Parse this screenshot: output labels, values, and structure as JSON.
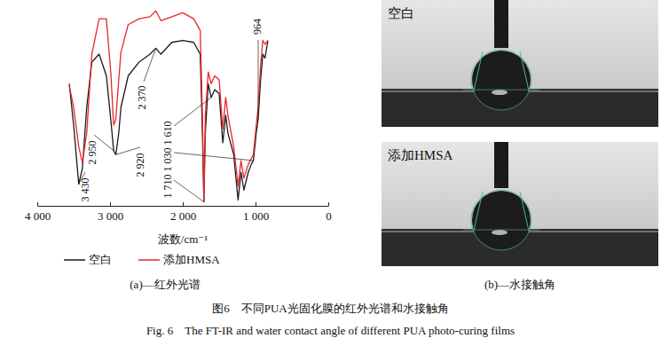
{
  "chart_data": {
    "type": "line",
    "xlabel": "波数/cm⁻¹",
    "caption": "(a)—红外光谱",
    "x": [
      3560,
      3500,
      3430,
      3380,
      3320,
      3250,
      3150,
      3050,
      2990,
      2950,
      2920,
      2880,
      2850,
      2750,
      2600,
      2450,
      2370,
      2300,
      2150,
      2000,
      1850,
      1760,
      1730,
      1710,
      1690,
      1650,
      1610,
      1560,
      1500,
      1450,
      1410,
      1380,
      1300,
      1240,
      1200,
      1160,
      1100,
      1060,
      1030,
      990,
      964,
      930,
      900,
      870,
      830
    ],
    "series": [
      {
        "name": "空白",
        "color": "#1a1a1a",
        "values": [
          62,
          41,
          11,
          19,
          50,
          73,
          77,
          66,
          44,
          28,
          26,
          37,
          50,
          66,
          73,
          77,
          80,
          77,
          83,
          84,
          83,
          77,
          37,
          2,
          37,
          62,
          55,
          59,
          57,
          32,
          46,
          37,
          26,
          3,
          17,
          8,
          17,
          21,
          23,
          37,
          44,
          64,
          77,
          75,
          84
        ]
      },
      {
        "name": "添加HMSA",
        "color": "#e8262d",
        "values": [
          61,
          50,
          30,
          22,
          37,
          77,
          95,
          95,
          68,
          41,
          44,
          64,
          78,
          92,
          95,
          96,
          99,
          94,
          96,
          98,
          95,
          89,
          46,
          3,
          46,
          68,
          62,
          66,
          64,
          39,
          55,
          46,
          30,
          10,
          23,
          14,
          21,
          24,
          26,
          41,
          50,
          71,
          84,
          82,
          84
        ]
      }
    ],
    "xlim": [
      4000,
      0
    ],
    "xticks": [
      {
        "value": 4000,
        "label": "4 000"
      },
      {
        "value": 3000,
        "label": "3 000"
      },
      {
        "value": 2000,
        "label": "2 000"
      },
      {
        "value": 1000,
        "label": "1 000"
      },
      0
    ],
    "ylim": [
      0,
      100
    ],
    "tick_labels": "x",
    "grid": false,
    "legend": "bottom",
    "annotations": [
      {
        "label": "3 430",
        "x": 3430
      },
      {
        "label": "2 950",
        "x": 2950
      },
      {
        "label": "2 920",
        "x": 2920
      },
      {
        "label": "2 370",
        "x": 2370
      },
      {
        "label": "1 610",
        "x": 1610
      },
      {
        "label": "1 030",
        "x": 1030
      },
      {
        "label": "1 710",
        "x": 1710
      },
      {
        "label": "964",
        "x": 964
      }
    ]
  },
  "contact_angle": {
    "caption": "(b)—水接触角",
    "images": [
      {
        "label": "空白"
      },
      {
        "label": "添加HMSA"
      }
    ]
  },
  "figure": {
    "title": "图6　不同PUA光固化膜的红外光谱和水接触角",
    "title_en": "Fig. 6　The FT-IR and water contact angle of different PUA photo-curing films"
  }
}
